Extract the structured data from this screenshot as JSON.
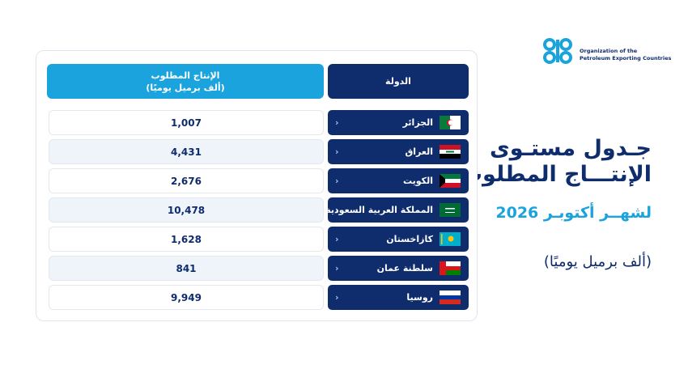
{
  "logo": {
    "line1": "Organization of the",
    "line2": "Petroleum Exporting Countries"
  },
  "header": {
    "title_line1": "جـدول مستـوى",
    "title_line2": "الإنتـــاج المطلوب",
    "subtitle": "لشهــر  أكتوبـر 2026",
    "unit": "(ألف برميل يوميًا)"
  },
  "table": {
    "columns": [
      {
        "label": "الدولة"
      },
      {
        "label": "الإنتاج المطلوب",
        "sublabel": "(ألف برميل يوميًا)"
      }
    ],
    "rows": [
      [
        "الجزائر",
        "1,007"
      ],
      [
        "العراق",
        "4,431"
      ],
      [
        "الكويت",
        "2,676"
      ],
      [
        "المملكة العربية السعودية",
        "10,478"
      ],
      [
        "كازاخستان",
        "1,628"
      ],
      [
        "سلطنة عمان",
        "841"
      ],
      [
        "روسيا",
        "9,949"
      ]
    ]
  }
}
